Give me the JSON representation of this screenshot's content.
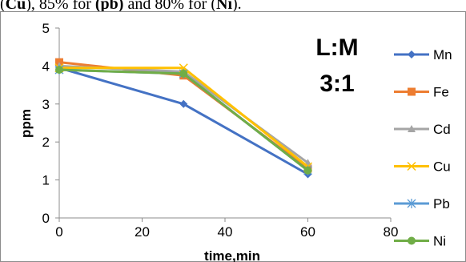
{
  "header_text": {
    "part1": "(",
    "part1_bold": "Cu",
    "part2": "), 85% for ",
    "part2_bold": "(pb)",
    "part3": " and 80% for (",
    "part3_bold": "Ni",
    "part4": ")."
  },
  "chart_data": {
    "type": "line",
    "title": "",
    "xlabel": "time,min",
    "ylabel": "ppm",
    "xlim": [
      0,
      80
    ],
    "ylim": [
      0,
      5
    ],
    "xticks": [
      0,
      20,
      40,
      60,
      80
    ],
    "yticks": [
      0,
      1,
      2,
      3,
      4,
      5
    ],
    "x": [
      0,
      30,
      60
    ],
    "grid": false,
    "legend_position": "right",
    "annotation": [
      "L:M",
      "3:1"
    ],
    "series": [
      {
        "name": "Mn",
        "values": [
          3.95,
          3.0,
          1.15
        ],
        "color": "#4472C4",
        "marker": "diamond"
      },
      {
        "name": "Fe",
        "values": [
          4.1,
          3.75,
          1.3
        ],
        "color": "#ED7D31",
        "marker": "square"
      },
      {
        "name": "Cd",
        "values": [
          4.0,
          3.85,
          1.45
        ],
        "color": "#A5A5A5",
        "marker": "triangle"
      },
      {
        "name": "Cu",
        "values": [
          3.95,
          3.95,
          1.35
        ],
        "color": "#FFC000",
        "marker": "x"
      },
      {
        "name": "Pb",
        "values": [
          3.9,
          3.8,
          1.25
        ],
        "color": "#5B9BD5",
        "marker": "star"
      },
      {
        "name": "Ni",
        "values": [
          3.9,
          3.8,
          1.25
        ],
        "color": "#70AD47",
        "marker": "circle"
      }
    ]
  }
}
